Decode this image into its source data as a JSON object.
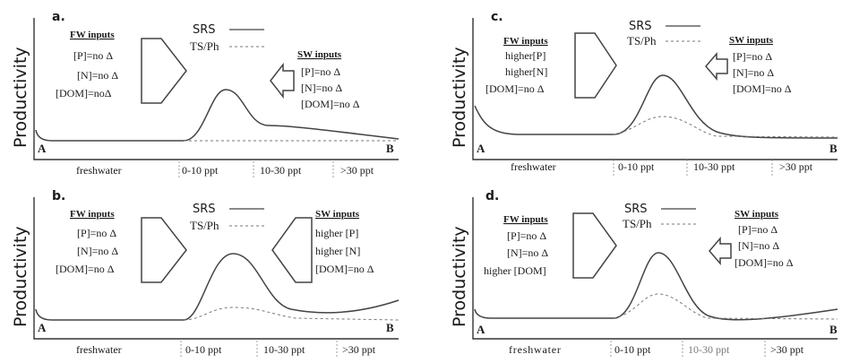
{
  "ylabel": "Productivity",
  "legend": {
    "srs": "SRS",
    "tsph": "TS/Ph"
  },
  "endpoints": {
    "start": "A",
    "end": "B"
  },
  "zones": [
    "freshwater",
    "0-10 ppt",
    "10-30 ppt",
    ">30 ppt"
  ],
  "panels": [
    {
      "label": "a.",
      "fw_title": "FW inputs",
      "fw_lines": [
        "[P]=no Δ",
        "[N]=no Δ",
        "[DOM]=noΔ"
      ],
      "sw_title": "SW inputs",
      "sw_lines": [
        "[P]=no Δ",
        "[N]=no Δ",
        "[DOM]=no Δ"
      ]
    },
    {
      "label": "b.",
      "fw_title": "FW inputs",
      "fw_lines": [
        "[P]=no Δ",
        "[N]=no Δ",
        "[DOM]=no Δ"
      ],
      "sw_title": "SW inputs",
      "sw_lines": [
        "higher [P]",
        "higher [N]",
        "[DOM]=no Δ"
      ]
    },
    {
      "label": "c.",
      "fw_title": "FW inputs",
      "fw_lines": [
        "higher[P]",
        "higher[N]",
        "[DOM]=no Δ"
      ],
      "sw_title": "SW inputs",
      "sw_lines": [
        "[P]=no Δ",
        "[N]=no Δ",
        "[DOM]=no Δ"
      ]
    },
    {
      "label": "d.",
      "fw_title": "FW inputs",
      "fw_lines": [
        "[P]=no Δ",
        "[N]=no Δ",
        "higher [DOM]"
      ],
      "sw_title": "SW inputs",
      "sw_lines": [
        "[P]=no Δ",
        "[N]=no Δ",
        "[DOM]=no Δ"
      ]
    }
  ]
}
